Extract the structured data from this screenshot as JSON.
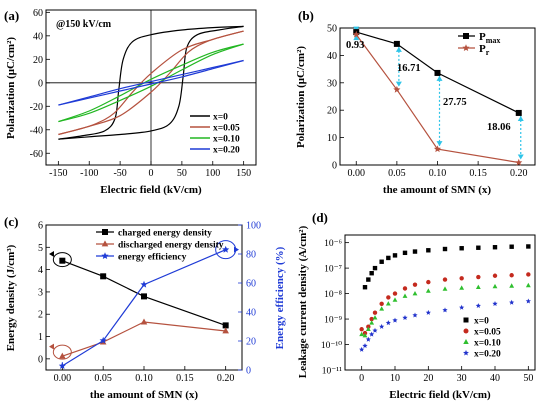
{
  "panels": {
    "a": "(a)",
    "b": "(b)",
    "c": "(c)",
    "d": "(d)"
  },
  "chart_data": [
    {
      "panel": "(a)",
      "type": "line",
      "annotation": "@150 kV/cm",
      "xlabel": "Electric field (kV/cm)",
      "ylabel": "Polarization (μC/cm²)",
      "xlim": [
        -170,
        170
      ],
      "ylim": [
        -70,
        62
      ],
      "xticks": [
        -150,
        -100,
        -50,
        0,
        50,
        100,
        150
      ],
      "yticks": [
        -60,
        -40,
        -20,
        0,
        20,
        40,
        60
      ],
      "legend_position": "bottom-right",
      "series": [
        {
          "name": "x=0",
          "color": "#000000",
          "upper": [
            [
              -150,
              -48
            ],
            [
              -110,
              -45
            ],
            [
              -75,
              -41
            ],
            [
              -58,
              -30
            ],
            [
              -52,
              -5
            ],
            [
              -45,
              20
            ],
            [
              -30,
              35
            ],
            [
              0,
              41
            ],
            [
              50,
              45
            ],
            [
              100,
              47
            ],
            [
              150,
              48
            ]
          ],
          "lower": [
            [
              -150,
              -48
            ],
            [
              -100,
              -46
            ],
            [
              -50,
              -44
            ],
            [
              0,
              -41
            ],
            [
              30,
              -35
            ],
            [
              45,
              -20
            ],
            [
              52,
              5
            ],
            [
              58,
              30
            ],
            [
              75,
              41
            ],
            [
              110,
              45
            ],
            [
              150,
              48
            ]
          ]
        },
        {
          "name": "x=0.05",
          "color": "#b5523f",
          "upper": [
            [
              -150,
              -44
            ],
            [
              -120,
              -40
            ],
            [
              -90,
              -35
            ],
            [
              -60,
              -26
            ],
            [
              -30,
              -8
            ],
            [
              0,
              8
            ],
            [
              50,
              28
            ],
            [
              100,
              37
            ],
            [
              150,
              44
            ]
          ],
          "lower": [
            [
              -150,
              -44
            ],
            [
              -100,
              -37
            ],
            [
              -50,
              -28
            ],
            [
              0,
              -8
            ],
            [
              30,
              8
            ],
            [
              60,
              26
            ],
            [
              90,
              35
            ],
            [
              120,
              40
            ],
            [
              150,
              44
            ]
          ]
        },
        {
          "name": "x=0.10",
          "color": "#22b722",
          "upper": [
            [
              -150,
              -33
            ],
            [
              -100,
              -24
            ],
            [
              -50,
              -11
            ],
            [
              0,
              3
            ],
            [
              50,
              15
            ],
            [
              100,
              26
            ],
            [
              150,
              33
            ]
          ],
          "lower": [
            [
              -150,
              -33
            ],
            [
              -100,
              -26
            ],
            [
              -50,
              -15
            ],
            [
              0,
              -3
            ],
            [
              50,
              11
            ],
            [
              100,
              24
            ],
            [
              150,
              33
            ]
          ]
        },
        {
          "name": "x=0.20",
          "color": "#1f3bd6",
          "upper": [
            [
              -150,
              -19
            ],
            [
              -100,
              -12
            ],
            [
              -50,
              -5
            ],
            [
              0,
              1
            ],
            [
              50,
              7
            ],
            [
              100,
              13
            ],
            [
              150,
              19
            ]
          ],
          "lower": [
            [
              -150,
              -19
            ],
            [
              -100,
              -13
            ],
            [
              -50,
              -7
            ],
            [
              0,
              -1
            ],
            [
              50,
              5
            ],
            [
              100,
              12
            ],
            [
              150,
              19
            ]
          ]
        }
      ]
    },
    {
      "panel": "(b)",
      "type": "line",
      "xlabel": "the amount of SMN (x)",
      "ylabel": "Polarization (μC/cm²)",
      "xlim": [
        -0.02,
        0.22
      ],
      "ylim": [
        0,
        50
      ],
      "xticks": [
        "0.00",
        "0.05",
        "0.10",
        "0.15",
        "0.20"
      ],
      "yticks": [
        0,
        10,
        20,
        30,
        40,
        50
      ],
      "x": [
        0,
        0.05,
        0.1,
        0.2
      ],
      "series": [
        {
          "name": "Pmax",
          "name_main": "P",
          "name_sub": "max",
          "color": "#000000",
          "marker": "square",
          "values": [
            48.5,
            44.2,
            33.6,
            19.0
          ]
        },
        {
          "name": "Pr",
          "name_main": "P",
          "name_sub": "r",
          "color": "#b5523f",
          "marker": "star",
          "values": [
            47.6,
            27.5,
            5.8,
            0.9
          ]
        }
      ],
      "annotations": [
        "0.93",
        "16.71",
        "27.75",
        "18.06"
      ]
    },
    {
      "panel": "(c)",
      "type": "line",
      "xlabel": "the amount of SMN (x)",
      "ylabel": "Energy density (J/cm³)",
      "ylabel_right": "Energy efficiency (%)",
      "xlim": [
        -0.02,
        0.22
      ],
      "ylim": [
        -0.5,
        6
      ],
      "ylim_right": [
        0,
        100
      ],
      "xticks": [
        "0.00",
        "0.05",
        "0.10",
        "0.15",
        "0.20"
      ],
      "yticks": [
        0,
        1,
        2,
        3,
        4,
        5,
        6
      ],
      "yticks_right": [
        0,
        20,
        40,
        60,
        80,
        100
      ],
      "x": [
        0,
        0.05,
        0.1,
        0.2
      ],
      "series": [
        {
          "name": "charged energy density",
          "axis": "left",
          "color": "#000000",
          "marker": "square",
          "values": [
            4.4,
            3.7,
            2.8,
            1.5
          ]
        },
        {
          "name": "discharged energy density",
          "axis": "left",
          "color": "#b5523f",
          "marker": "triangle",
          "values": [
            0.12,
            0.75,
            1.65,
            1.25
          ]
        },
        {
          "name": "energy efficiency",
          "axis": "right",
          "color": "#1f3bd6",
          "marker": "star",
          "values": [
            2.8,
            20.3,
            58.9,
            83.0
          ]
        }
      ]
    },
    {
      "panel": "(d)",
      "type": "scatter",
      "xlabel": "Electric field (kV/cm)",
      "ylabel": "Leakage current density (A/cm²)",
      "xlim": [
        -5,
        52
      ],
      "yscale": "log",
      "ylim_exp": [
        -11,
        -5.7
      ],
      "xticks": [
        0,
        10,
        20,
        30,
        40,
        50
      ],
      "yticks": [
        "10⁻¹¹",
        "10⁻¹⁰",
        "10⁻⁹",
        "10⁻⁸",
        "10⁻⁷",
        "10⁻⁶"
      ],
      "legend_position": "bottom-right",
      "series": [
        {
          "name": "x=0",
          "color": "#000000",
          "marker": "square",
          "x": [
            1,
            2,
            3,
            4,
            6,
            8,
            10,
            13,
            16,
            20,
            25,
            30,
            35,
            40,
            45,
            50
          ],
          "log10_y": [
            -7.75,
            -7.45,
            -7.2,
            -7.0,
            -6.75,
            -6.6,
            -6.5,
            -6.4,
            -6.35,
            -6.3,
            -6.25,
            -6.22,
            -6.2,
            -6.18,
            -6.16,
            -6.15
          ]
        },
        {
          "name": "x=0.05",
          "color": "#c42a1e",
          "marker": "circle",
          "x": [
            0,
            1,
            2,
            3,
            4,
            6,
            8,
            10,
            13,
            16,
            20,
            25,
            30,
            35,
            40,
            45,
            50
          ],
          "log10_y": [
            -9.4,
            -9.55,
            -9.3,
            -9.0,
            -8.75,
            -8.4,
            -8.15,
            -8.0,
            -7.8,
            -7.65,
            -7.55,
            -7.45,
            -7.4,
            -7.35,
            -7.3,
            -7.28,
            -7.25
          ]
        },
        {
          "name": "x=0.10",
          "color": "#2fbf2f",
          "marker": "triangle",
          "x": [
            0,
            1,
            2,
            3,
            4,
            6,
            8,
            10,
            13,
            16,
            20,
            25,
            30,
            35,
            40,
            45,
            50
          ],
          "log10_y": [
            -9.6,
            -9.65,
            -9.4,
            -9.15,
            -8.95,
            -8.6,
            -8.4,
            -8.25,
            -8.1,
            -8.0,
            -7.9,
            -7.82,
            -7.78,
            -7.75,
            -7.72,
            -7.7,
            -7.68
          ]
        },
        {
          "name": "x=0.20",
          "color": "#2233cc",
          "marker": "star",
          "x": [
            0,
            1,
            2,
            3,
            4,
            6,
            8,
            10,
            13,
            16,
            20,
            25,
            30,
            35,
            40,
            45,
            50
          ],
          "log10_y": [
            -10.2,
            -10.05,
            -9.8,
            -9.6,
            -9.45,
            -9.3,
            -9.15,
            -9.05,
            -8.95,
            -8.85,
            -8.75,
            -8.65,
            -8.55,
            -8.48,
            -8.4,
            -8.35,
            -8.3
          ]
        }
      ]
    }
  ]
}
